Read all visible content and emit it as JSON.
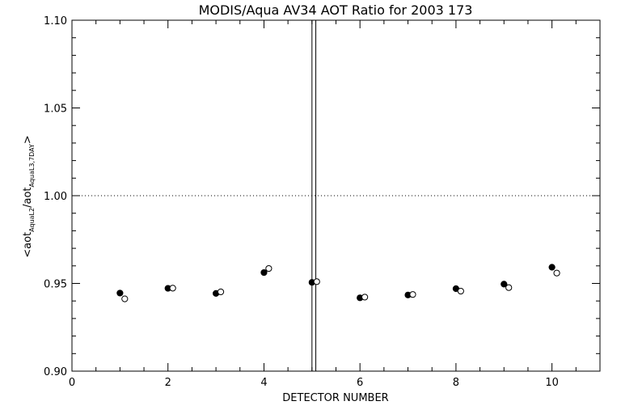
{
  "chart_data": {
    "type": "scatter",
    "title": "MODIS/Aqua AV34 AOT Ratio for 2003 173",
    "xlabel": "DETECTOR NUMBER",
    "ylabel": {
      "prefix": "<aot",
      "sub1": "AquaL2",
      "middle": "/aot",
      "sub2": "AquaL3,7DAY",
      "suffix": ">"
    },
    "xlim": [
      0,
      11
    ],
    "ylim": [
      0.9,
      1.1
    ],
    "xticks": [
      0,
      2,
      4,
      6,
      8,
      10
    ],
    "xtick_labels": [
      "0",
      "2",
      "4",
      "6",
      "8",
      "10"
    ],
    "yticks": [
      0.9,
      0.95,
      1.0,
      1.05,
      1.1
    ],
    "ytick_labels": [
      "0.90",
      "0.95",
      "1.00",
      "1.05",
      "1.10"
    ],
    "reference_line_y": 1.0,
    "vertical_lines_x": [
      5.0,
      5.08
    ],
    "grid": false,
    "series": [
      {
        "marker": "filled-circle",
        "x": [
          1.0,
          2.0,
          3.0,
          4.0,
          5.0,
          6.0,
          7.0,
          8.0,
          9.0,
          10.0
        ],
        "y": [
          0.9445,
          0.9472,
          0.9443,
          0.9562,
          0.9506,
          0.9418,
          0.9434,
          0.947,
          0.9496,
          0.9592
        ]
      },
      {
        "marker": "open-circle",
        "x": [
          1.1,
          2.1,
          3.1,
          4.1,
          5.1,
          6.1,
          7.1,
          8.1,
          9.1,
          10.1
        ],
        "y": [
          0.9412,
          0.9473,
          0.9452,
          0.9585,
          0.951,
          0.9422,
          0.9437,
          0.9456,
          0.9476,
          0.9559
        ]
      }
    ]
  }
}
